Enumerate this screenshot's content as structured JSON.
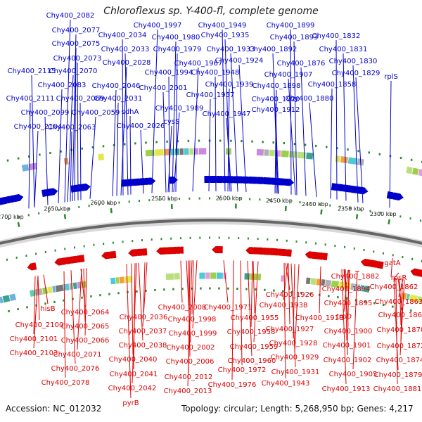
{
  "title": "Chloroflexus sp. Y-400-fl, complete genome",
  "footer": {
    "accession": "Accession: NC_012032",
    "summary": "Topology: circular; Length: 5,268,950 bp; Genes: 4,217"
  },
  "colors": {
    "forward_strand": "#0000cc",
    "reverse_strand": "#dd0000",
    "backbone": "#666666",
    "tick_marks": "#2a8a2a"
  },
  "ticks": [
    "2300 kbp",
    "2350 kbp",
    "2400 kbp",
    "2450 kbp",
    "2500 kbp",
    "2550 kbp",
    "2600 kbp",
    "2650 kbp",
    "2700 kbp"
  ],
  "top_labels": [
    "Chy400_2082",
    "Chy400_2077",
    "Chy400_2075",
    "Chy400_2073",
    "Chy400_2115",
    "Chy400_2070",
    "Chy400_2083",
    "Chy400_2111",
    "Chy400_2069",
    "Chy400_2099",
    "Chy400_2059",
    "Chy400_2104",
    "Chy400_2063",
    "Chy400_2034",
    "Chy400_2033",
    "Chy400_2028",
    "Chy400_2046",
    "Chy400_2031",
    "sdhA",
    "Chy400_2026",
    "Chy400_1997",
    "Chy400_1980",
    "Chy400_1979",
    "Chy400_1994",
    "Chy400_2001",
    "Chy400_1989",
    "cysS",
    "Chy400_1949",
    "Chy400_1935",
    "Chy400_1933",
    "Chy400_1967",
    "Chy400_1948",
    "Chy400_1957",
    "Chy400_1947",
    "Chy400_1924",
    "Chy400_1939",
    "Chy400_1899",
    "Chy400_1893",
    "Chy400_1892",
    "Chy400_1907",
    "Chy400_1898",
    "Chy400_1920",
    "Chy400_1912",
    "Chy400_1876",
    "Chy400_1880",
    "Chy400_1858",
    "Chy400_1832",
    "Chy400_1831",
    "Chy400_1830",
    "Chy400_1829",
    "rplS"
  ],
  "bottom_labels": [
    "hisB",
    "Chy400_2100",
    "Chy400_2101",
    "Chy400_2103",
    "Chy400_2064",
    "Chy400_2065",
    "Chy400_2066",
    "Chy400_2071",
    "Chy400_2076",
    "Chy400_2078",
    "Chy400_2036",
    "Chy400_2037",
    "Chy400_2038",
    "Chy400_2040",
    "Chy400_2041",
    "Chy400_2042",
    "pyrB",
    "Chy400_2008",
    "Chy400_1998",
    "Chy400_1999",
    "Chy400_2002",
    "Chy400_2006",
    "Chy400_2012",
    "Chy400_2013",
    "Chy400_1971",
    "Chy400_1955",
    "Chy400_1958",
    "Chy400_1959",
    "Chy400_1960",
    "Chy400_1972",
    "Chy400_1976",
    "Chy400_1938",
    "Chy400_1926",
    "Chy400_1927",
    "Chy400_1928",
    "Chy400_1929",
    "Chy400_1931",
    "Chy400_1943",
    "Chy400_1918",
    "trpD",
    "Chy400_1900",
    "Chy400_1901",
    "Chy400_1902",
    "Chy400_1905",
    "Chy400_1913",
    "Chy400_1894",
    "Chy400_1895",
    "Chy400_1882",
    "rpsR",
    "gatA",
    "Chy400_1862",
    "Chy400_1863",
    "Chy400_1864",
    "Chy400_1870",
    "Chy400_1872",
    "Chy400_1874",
    "Chy400_1879",
    "Chy400_1881"
  ]
}
